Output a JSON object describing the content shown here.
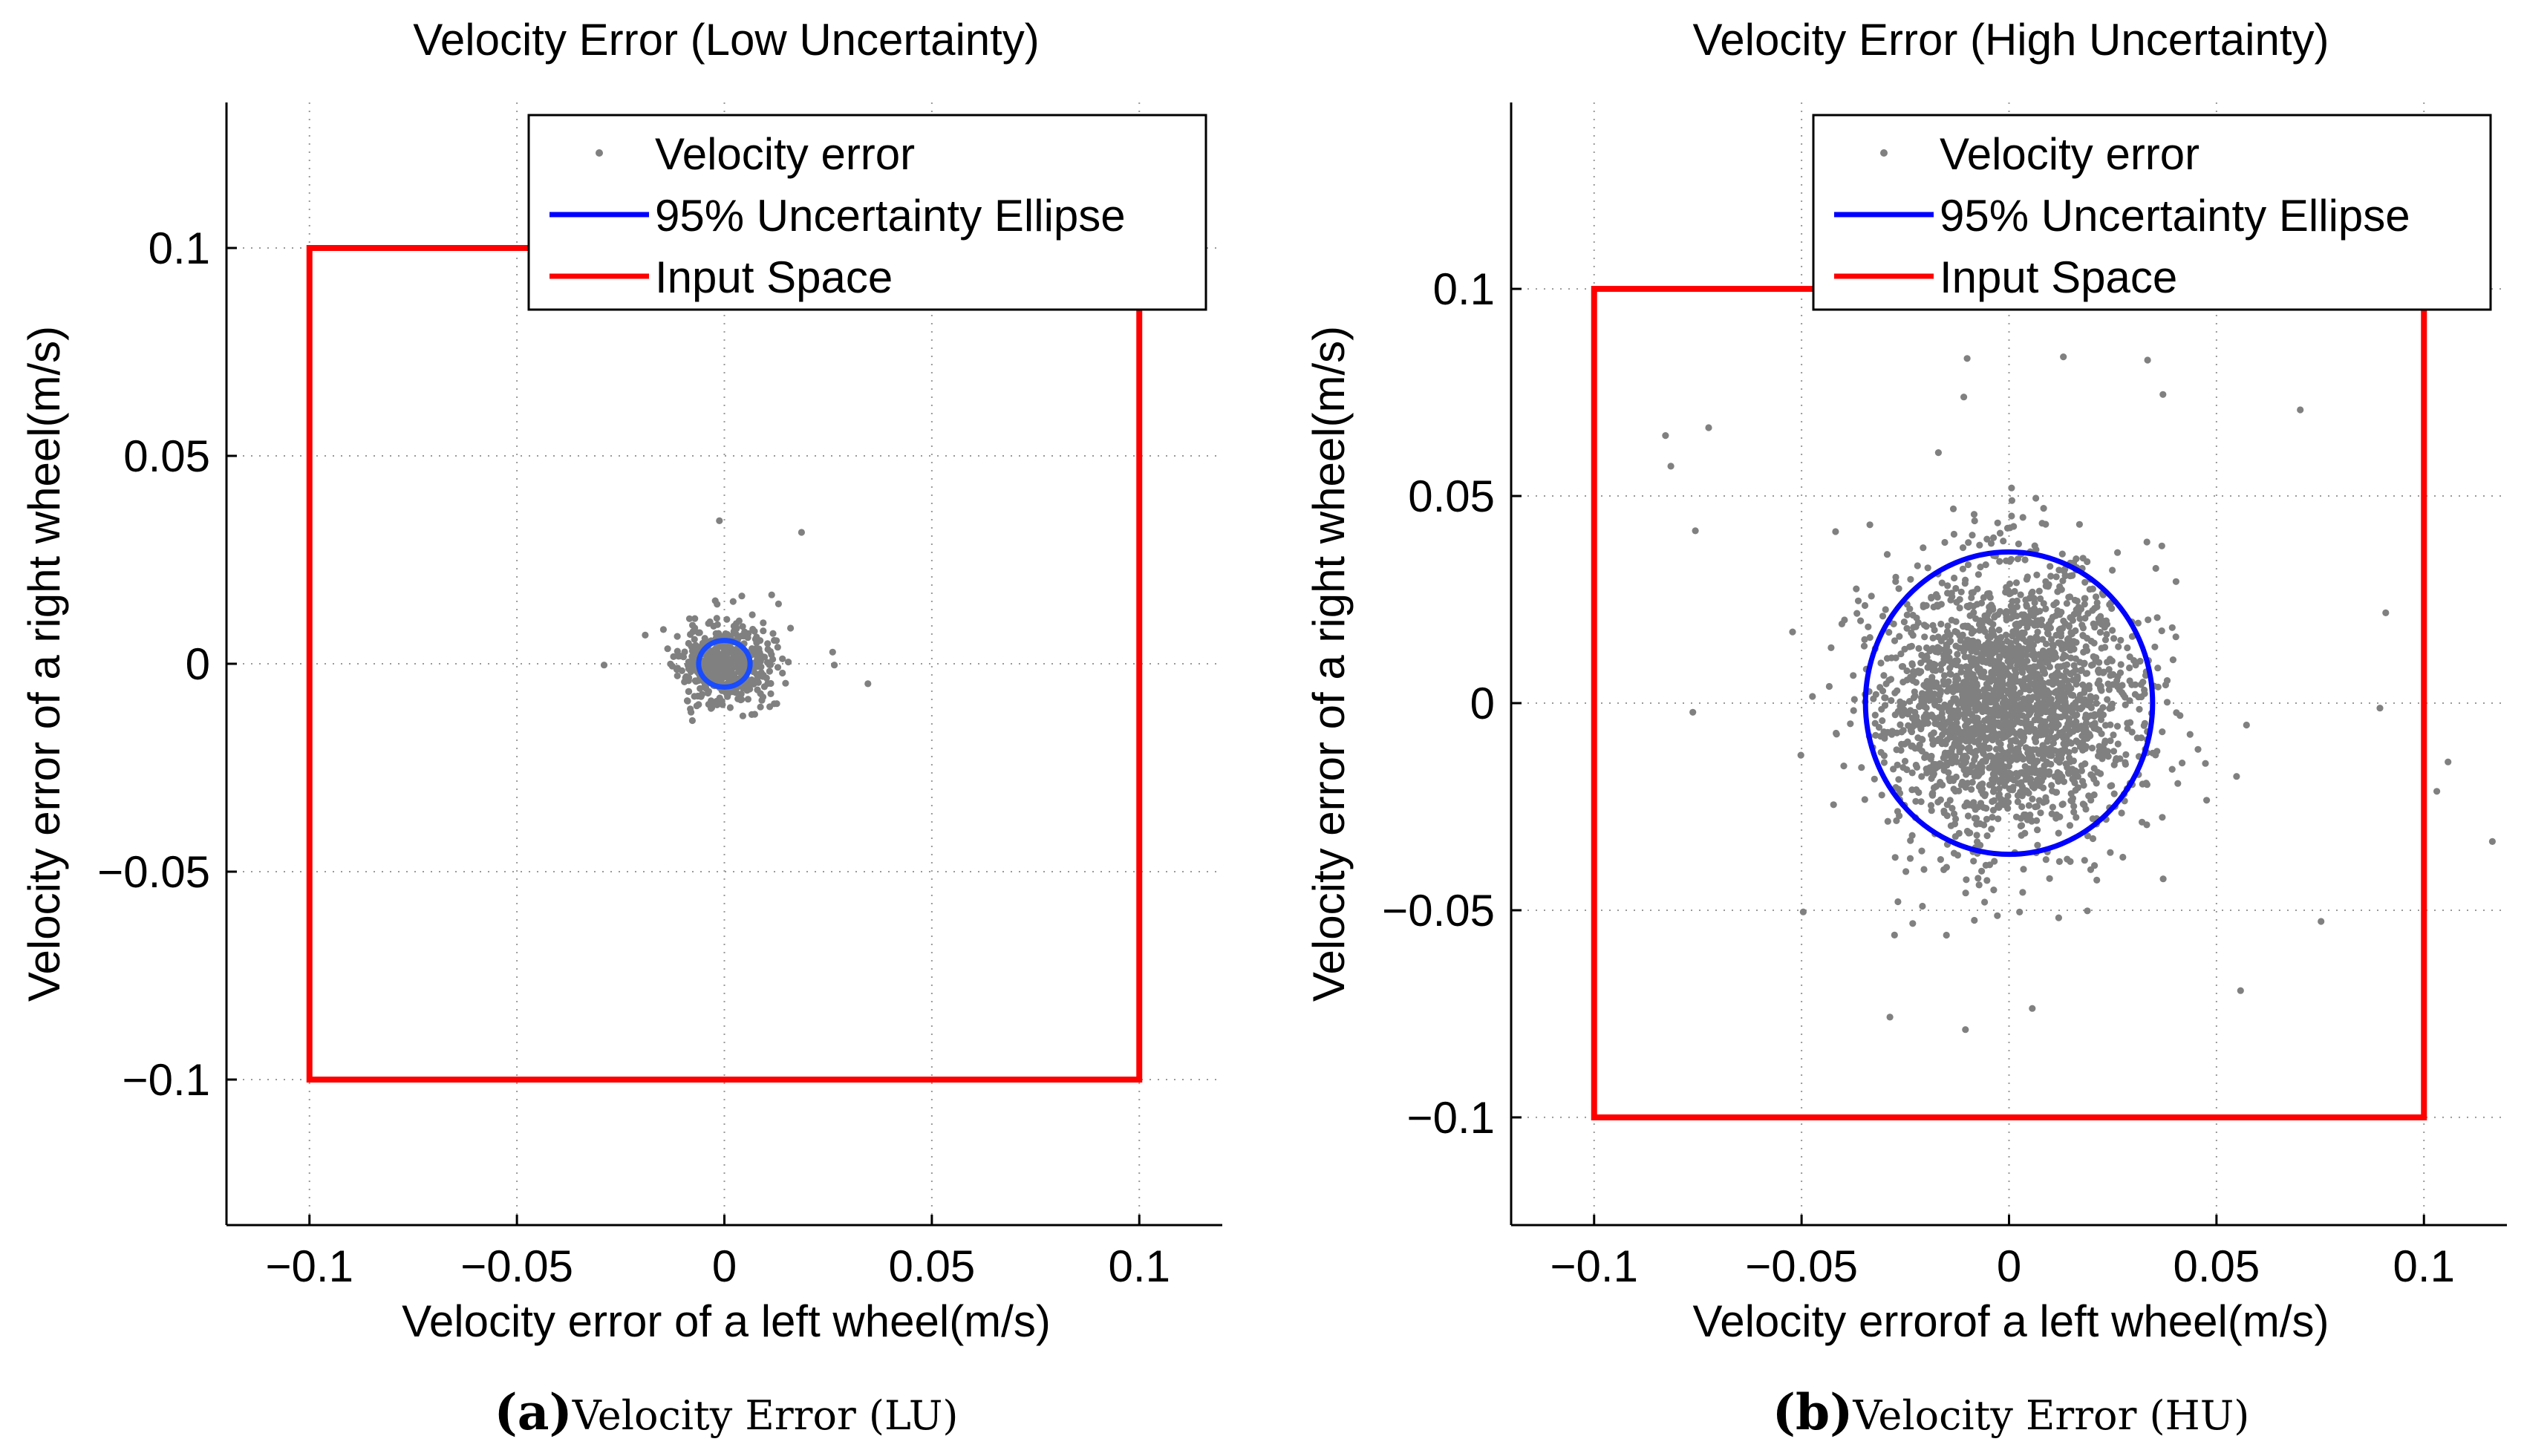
{
  "figure": {
    "caption_a": {
      "paren_open": "(",
      "letter": "a",
      "paren_close": ")",
      "text": "Velocity Error (LU)"
    },
    "caption_b": {
      "paren_open": "(",
      "letter": "b",
      "paren_close": ")",
      "text": "Velocity Error (HU)"
    }
  },
  "colors": {
    "scatter": "#808080",
    "ellipse": "#0000ff",
    "ellipse_a": "#1a4cff",
    "input_space": "#ff0000",
    "axes": "#000000",
    "grid": "#9a9a9a"
  },
  "chart_data": [
    {
      "type": "scatter",
      "id": "a",
      "title": "Velocity Error (Low Uncertainty)",
      "xlabel": "Velocity error of a left wheel(m/s)",
      "ylabel": "Velocity error of a right wheel(m/s)",
      "xlim": [
        -0.12,
        0.12
      ],
      "ylim": [
        -0.135,
        0.135
      ],
      "xticks": [
        -0.1,
        -0.05,
        0,
        0.05,
        0.1
      ],
      "xtick_labels": [
        "−0.1",
        "−0.05",
        "0",
        "0.05",
        "0.1"
      ],
      "yticks": [
        -0.1,
        -0.05,
        0,
        0.05,
        0.1
      ],
      "ytick_labels": [
        "−0.1",
        "−0.05",
        "0",
        "0.05",
        "0.1"
      ],
      "grid": true,
      "legend_position": "top-right",
      "legend": [
        "Velocity error",
        "95% Uncertainty Ellipse",
        "Input Space"
      ],
      "series": [
        {
          "name": "Velocity error",
          "kind": "points",
          "distribution": {
            "n": 520,
            "sx": 0.0055,
            "sy": 0.0048,
            "seed": 11
          },
          "outliers": [
            [
              0.0186,
              0.0316
            ],
            [
              0.0261,
              0.0028
            ],
            [
              0.0265,
              -0.0003
            ],
            [
              0.0346,
              -0.0048
            ],
            [
              -0.029,
              -0.0003
            ],
            [
              -0.0012,
              0.0344
            ],
            [
              0.0087,
              -0.0104
            ],
            [
              0.0042,
              0.0163
            ]
          ]
        },
        {
          "name": "95% Uncertainty Ellipse",
          "kind": "ellipse",
          "center": [
            0,
            0
          ],
          "radii": [
            0.0062,
            0.0056
          ]
        },
        {
          "name": "Input Space",
          "kind": "rectangle",
          "x": [
            -0.1,
            0.1
          ],
          "y": [
            -0.1,
            0.1
          ]
        }
      ]
    },
    {
      "type": "scatter",
      "id": "b",
      "title": "Velocity Error (High Uncertainty)",
      "xlabel": "Velocity errorof a left wheel(m/s)",
      "ylabel": "Velocity error of a right wheel(m/s)",
      "xlim": [
        -0.12,
        0.12
      ],
      "ylim": [
        -0.126,
        0.145
      ],
      "xticks": [
        -0.1,
        -0.05,
        0,
        0.05,
        0.1
      ],
      "xtick_labels": [
        "−0.1",
        "−0.05",
        "0",
        "0.05",
        "0.1"
      ],
      "yticks": [
        -0.1,
        -0.05,
        0,
        0.05,
        0.1
      ],
      "ytick_labels": [
        "−0.1",
        "−0.05",
        "0",
        "0.05",
        "0.1"
      ],
      "grid": true,
      "legend_position": "top-right",
      "legend": [
        "Velocity error",
        "95% Uncertainty Ellipse",
        "Input Space"
      ],
      "series": [
        {
          "name": "Velocity error",
          "kind": "points",
          "distribution": {
            "n": 2300,
            "sx": 0.0155,
            "sy": 0.0168,
            "seed": 29
          },
          "outliers": [
            [
              -0.0828,
              0.0646
            ],
            [
              -0.0815,
              0.0572
            ],
            [
              -0.0724,
              0.0665
            ],
            [
              -0.0762,
              -0.0022
            ],
            [
              -0.0756,
              0.0416
            ],
            [
              0.0908,
              0.0218
            ],
            [
              0.0894,
              -0.0012
            ],
            [
              0.1058,
              -0.0142
            ],
            [
              0.1165,
              -0.0334
            ],
            [
              0.1031,
              -0.0213
            ],
            [
              0.0752,
              -0.0527
            ],
            [
              0.0702,
              0.0708
            ],
            [
              0.0334,
              0.0828
            ],
            [
              0.0131,
              0.0836
            ],
            [
              -0.0109,
              0.0739
            ],
            [
              -0.0101,
              0.0832
            ],
            [
              -0.0105,
              -0.0788
            ],
            [
              0.0056,
              -0.0737
            ],
            [
              -0.0287,
              -0.0758
            ],
            [
              0.0558,
              -0.0694
            ],
            [
              -0.0496,
              -0.0504
            ],
            [
              0.0371,
              0.0745
            ]
          ]
        },
        {
          "name": "95% Uncertainty Ellipse",
          "kind": "ellipse",
          "center": [
            0,
            0
          ],
          "radii": [
            0.0346,
            0.0365
          ]
        },
        {
          "name": "Input Space",
          "kind": "rectangle",
          "x": [
            -0.1,
            0.1
          ],
          "y": [
            -0.1,
            0.1
          ]
        }
      ]
    }
  ]
}
